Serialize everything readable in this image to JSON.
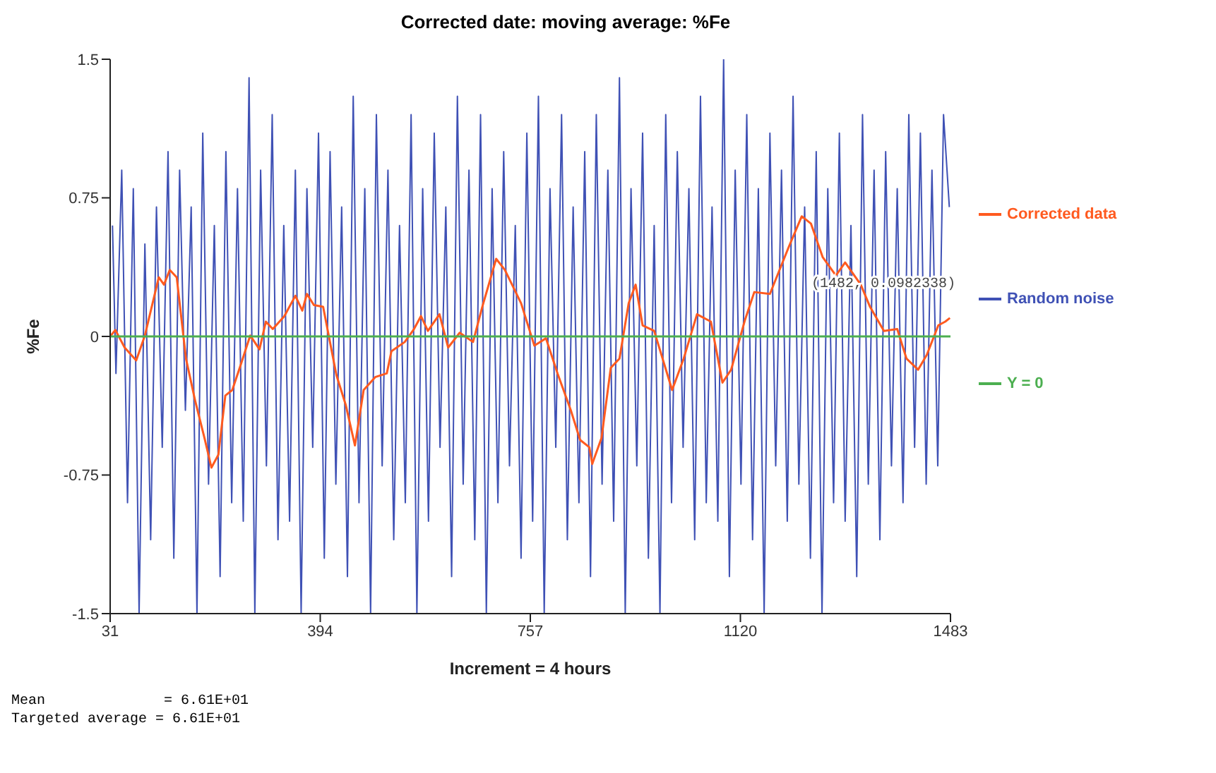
{
  "chart_data": {
    "type": "line",
    "title": "Corrected date: moving average: %Fe",
    "xlabel": "Increment = 4 hours",
    "ylabel": "%Fe",
    "xlim": [
      31,
      1483
    ],
    "xticks": [
      31,
      394,
      757,
      1120,
      1483
    ],
    "ylim": [
      -1.5,
      1.5
    ],
    "yticks": [
      -1.5,
      -0.75,
      0,
      0.75,
      1.5
    ],
    "grid": false,
    "legend": "right",
    "marker": "none",
    "line_style": "solid",
    "series": [
      {
        "name": "Corrected data",
        "color": "#ff5a1f",
        "x": [
          31,
          40,
          56,
          76,
          91,
          115,
          124,
          134,
          146,
          162,
          178,
          194,
          206,
          218,
          230,
          242,
          257,
          273,
          289,
          300,
          312,
          332,
          351,
          363,
          371,
          383,
          399,
          422,
          438,
          454,
          469,
          489,
          509,
          517,
          540,
          556,
          568,
          580,
          600,
          615,
          635,
          658,
          674,
          698,
          713,
          741,
          764,
          784,
          804,
          827,
          843,
          859,
          864,
          880,
          896,
          911,
          927,
          939,
          951,
          971,
          1002,
          1022,
          1045,
          1069,
          1089,
          1104,
          1128,
          1144,
          1171,
          1203,
          1226,
          1242,
          1262,
          1285,
          1301,
          1328,
          1344,
          1368,
          1391,
          1407,
          1427,
          1442,
          1462,
          1474,
          1482
        ],
        "values": [
          0,
          0.035,
          -0.06,
          -0.13,
          0.005,
          0.32,
          0.28,
          0.36,
          0.32,
          -0.12,
          -0.35,
          -0.55,
          -0.71,
          -0.64,
          -0.32,
          -0.29,
          -0.15,
          0.005,
          -0.07,
          0.08,
          0.04,
          0.11,
          0.22,
          0.14,
          0.23,
          0.17,
          0.16,
          -0.21,
          -0.37,
          -0.59,
          -0.29,
          -0.22,
          -0.2,
          -0.08,
          -0.03,
          0.04,
          0.11,
          0.03,
          0.12,
          -0.06,
          0.02,
          -0.03,
          0.16,
          0.42,
          0.36,
          0.18,
          -0.05,
          -0.01,
          -0.2,
          -0.4,
          -0.56,
          -0.6,
          -0.69,
          -0.55,
          -0.17,
          -0.12,
          0.18,
          0.28,
          0.06,
          0.03,
          -0.29,
          -0.12,
          0.12,
          0.08,
          -0.25,
          -0.18,
          0.09,
          0.24,
          0.23,
          0.48,
          0.65,
          0.61,
          0.43,
          0.33,
          0.4,
          0.28,
          0.16,
          0.03,
          0.04,
          -0.12,
          -0.18,
          -0.1,
          0.06,
          0.08,
          0.1
        ]
      },
      {
        "name": "Random noise",
        "color": "#3f51b5",
        "x": [
          35,
          41,
          51,
          61,
          71,
          81,
          91,
          101,
          111,
          121,
          131,
          141,
          151,
          161,
          171,
          181,
          191,
          201,
          211,
          221,
          231,
          241,
          251,
          261,
          271,
          281,
          291,
          301,
          311,
          321,
          331,
          341,
          351,
          361,
          371,
          381,
          391,
          401,
          411,
          421,
          431,
          441,
          451,
          461,
          471,
          481,
          491,
          501,
          511,
          521,
          531,
          541,
          551,
          561,
          571,
          581,
          591,
          601,
          611,
          621,
          631,
          641,
          651,
          661,
          671,
          681,
          691,
          701,
          711,
          721,
          731,
          741,
          751,
          761,
          771,
          781,
          791,
          801,
          811,
          821,
          831,
          841,
          851,
          861,
          871,
          881,
          891,
          901,
          911,
          921,
          931,
          941,
          951,
          961,
          971,
          981,
          991,
          1001,
          1011,
          1021,
          1031,
          1041,
          1051,
          1061,
          1071,
          1081,
          1091,
          1101,
          1111,
          1121,
          1131,
          1141,
          1151,
          1161,
          1171,
          1181,
          1191,
          1201,
          1211,
          1221,
          1231,
          1241,
          1251,
          1261,
          1271,
          1281,
          1291,
          1301,
          1311,
          1321,
          1331,
          1341,
          1351,
          1361,
          1371,
          1381,
          1391,
          1401,
          1411,
          1421,
          1431,
          1441,
          1451,
          1461,
          1471,
          1481
        ],
        "values": [
          0.6,
          -0.2,
          0.9,
          -0.9,
          0.8,
          -1.5,
          0.5,
          -1.1,
          0.7,
          -0.6,
          1.0,
          -1.2,
          0.9,
          -0.4,
          0.7,
          -1.5,
          1.1,
          -0.8,
          0.6,
          -1.3,
          1.0,
          -0.9,
          0.8,
          -1.0,
          1.4,
          -1.5,
          0.9,
          -0.7,
          1.2,
          -1.1,
          0.6,
          -1.0,
          0.9,
          -1.5,
          0.8,
          -0.6,
          1.1,
          -1.2,
          1.0,
          -0.8,
          0.7,
          -1.3,
          1.3,
          -0.9,
          0.8,
          -1.5,
          1.2,
          -0.7,
          0.9,
          -1.1,
          0.6,
          -0.9,
          1.2,
          -1.5,
          0.8,
          -1.0,
          1.1,
          -0.6,
          0.7,
          -1.3,
          1.3,
          -0.8,
          0.9,
          -1.1,
          1.2,
          -1.5,
          0.8,
          -0.9,
          1.0,
          -0.7,
          0.6,
          -1.2,
          1.1,
          -1.0,
          1.3,
          -1.5,
          0.8,
          -0.6,
          1.2,
          -1.1,
          0.7,
          -0.9,
          1.0,
          -1.3,
          1.2,
          -0.8,
          0.9,
          -1.0,
          1.4,
          -1.5,
          0.8,
          -0.7,
          1.1,
          -1.2,
          0.6,
          -1.5,
          1.2,
          -0.9,
          1.0,
          -0.6,
          0.8,
          -1.1,
          1.3,
          -0.9,
          0.7,
          -1.0,
          1.5,
          -1.3,
          0.9,
          -0.8,
          1.2,
          -1.1,
          0.8,
          -1.5,
          1.1,
          -0.7,
          0.9,
          -1.0,
          1.3,
          -0.8,
          0.7,
          -1.2,
          1.0,
          -1.5,
          0.8,
          -0.9,
          1.1,
          -1.0,
          0.6,
          -1.3,
          1.2,
          -0.8,
          0.9,
          -1.1,
          1.0,
          -0.7,
          0.8,
          -0.9,
          1.2,
          -0.6,
          1.1,
          -0.8,
          0.9,
          -0.7,
          1.2,
          0.7
        ]
      },
      {
        "name": "Y = 0",
        "color": "#4caf50",
        "x": [
          31,
          1483
        ],
        "values": [
          0,
          0
        ]
      }
    ],
    "annotations": [
      {
        "text": "(1482, 0.0982338)",
        "x": 1482,
        "y": 0.0982338
      },
      "Mean              = 6.61E+01",
      "Targeted average = 6.61E+01"
    ]
  }
}
